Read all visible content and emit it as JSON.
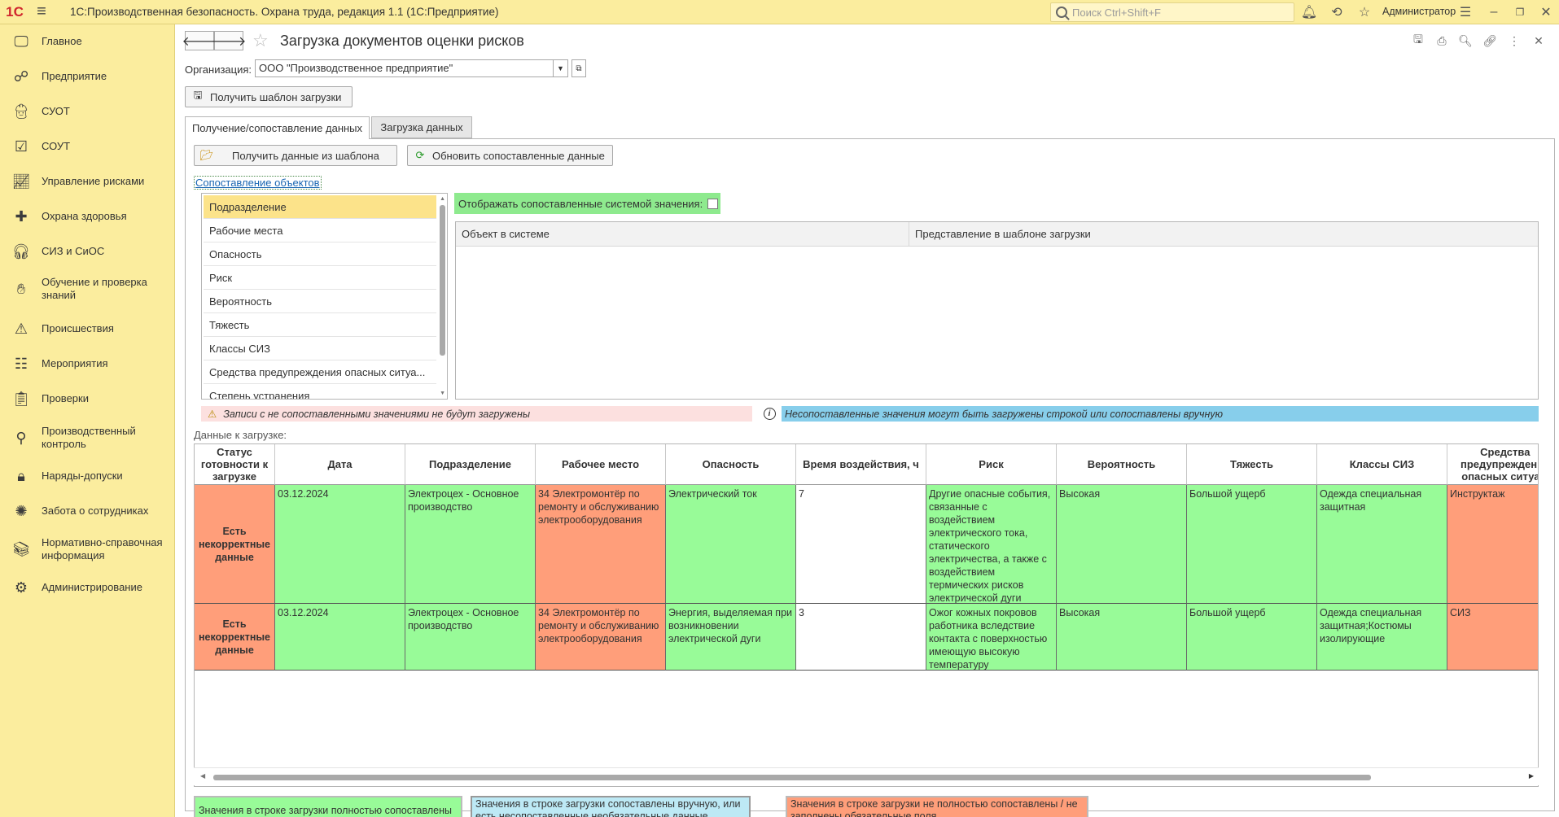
{
  "app": {
    "title": "1С:Производственная безопасность. Охрана труда, редакция 1.1  (1С:Предприятие)",
    "logo": "1С",
    "search_placeholder": "Поиск Ctrl+Shift+F",
    "user": "Администратор"
  },
  "sidebar": {
    "items": [
      {
        "label": "Главное",
        "icon": "monitor-icon"
      },
      {
        "label": "Предприятие",
        "icon": "org-structure-icon"
      },
      {
        "label": "СУОТ",
        "icon": "worker-icon"
      },
      {
        "label": "СОУТ",
        "icon": "checklist-icon"
      },
      {
        "label": "Управление рисками",
        "icon": "chart-icon"
      },
      {
        "label": "Охрана здоровья",
        "icon": "medical-icon"
      },
      {
        "label": "СИЗ и СиОС",
        "icon": "headset-icon"
      },
      {
        "label": "Обучение и проверка знаний",
        "icon": "training-icon"
      },
      {
        "label": "Происшествия",
        "icon": "warning-icon"
      },
      {
        "label": "Мероприятия",
        "icon": "tasks-icon"
      },
      {
        "label": "Проверки",
        "icon": "clipboard-icon"
      },
      {
        "label": "Производственный контроль",
        "icon": "control-icon"
      },
      {
        "label": "Наряды-допуски",
        "icon": "permit-icon"
      },
      {
        "label": "Забота о сотрудниках",
        "icon": "care-icon"
      },
      {
        "label": "Нормативно-справочная информация",
        "icon": "books-icon"
      },
      {
        "label": "Администрирование",
        "icon": "admin-icon"
      }
    ]
  },
  "form": {
    "title": "Загрузка документов оценки рисков",
    "org_label": "Организация:",
    "org_value": "ООО \"Производственное предприятие\"",
    "get_template_button": "Получить шаблон загрузки",
    "tabs": [
      "Получение/сопоставление данных",
      "Загрузка данных"
    ],
    "get_data_button": "Получить данные из шаблона",
    "refresh_button": "Обновить сопоставленные данные",
    "mapping_link": "Сопоставление объектов",
    "object_list": [
      "Подразделение",
      "Рабочие места",
      "Опасность",
      "Риск",
      "Вероятность",
      "Тяжесть",
      "Классы СИЗ",
      "Средства предупреждения опасных ситуа...",
      "Степень устранения"
    ],
    "show_mapped_label": "Отображать сопоставленные системой значения:",
    "mapping_columns": [
      "Объект в системе",
      "Представление в шаблоне загрузки"
    ],
    "warning_text": "Записи с не сопоставленными значениями не будут загружены",
    "info_text": "Несопоставленные значения могут быть загружены строкой или сопоставлены вручную",
    "data_label": "Данные к загрузке:",
    "columns": [
      "Статус готовности к загрузке",
      "Дата",
      "Подразделение",
      "Рабочее место",
      "Опасность",
      "Время воздействия, ч",
      "Риск",
      "Вероятность",
      "Тяжесть",
      "Классы СИЗ",
      "Средства предупреждения опасных ситуа..."
    ],
    "rows": [
      {
        "status": "Есть некорректные данные",
        "date": "03.12.2024",
        "division": "Электроцех - Основное производство",
        "workplace": "34 Электромонтёр по ремонту и обслуживанию электрооборудования",
        "hazard": "Электрический ток",
        "time": "7",
        "risk": "Другие опасные события, связанные с воздействием электрического тока, статического электричества, а также с воздействием термических рисков электрической дуги",
        "probability": "Высокая",
        "severity": "Большой ущерб",
        "ppe": "Одежда специальная защитная",
        "prevention": "Инструктаж"
      },
      {
        "status": "Есть некорректные данные",
        "date": "03.12.2024",
        "division": "Электроцех - Основное производство",
        "workplace": "34 Электромонтёр по ремонту и обслуживанию электрооборудования",
        "hazard": "Энергия, выделяемая при возникновении электрической дуги",
        "time": "3",
        "risk": "Ожог кожных покровов работника вследствие контакта с поверхностью имеющую высокую температуру",
        "probability": "Высокая",
        "severity": "Большой ущерб",
        "ppe": "Одежда специальная защитная;Костюмы изолирующие",
        "prevention": "СИЗ"
      }
    ],
    "legend": [
      "Значения в строке загрузки полностью сопоставлены",
      "Значения в строке загрузки сопоставлены вручную, или есть несопоставленные необязательные данные",
      "Значения в строке загрузки не полностью сопоставлены / не заполнены обязательные поля"
    ],
    "colors": {
      "green": "#98fb98",
      "orange": "#ff9e7a",
      "blue": "#add8e6",
      "selected": "#fce38a",
      "panel": "#fbed9e"
    }
  }
}
